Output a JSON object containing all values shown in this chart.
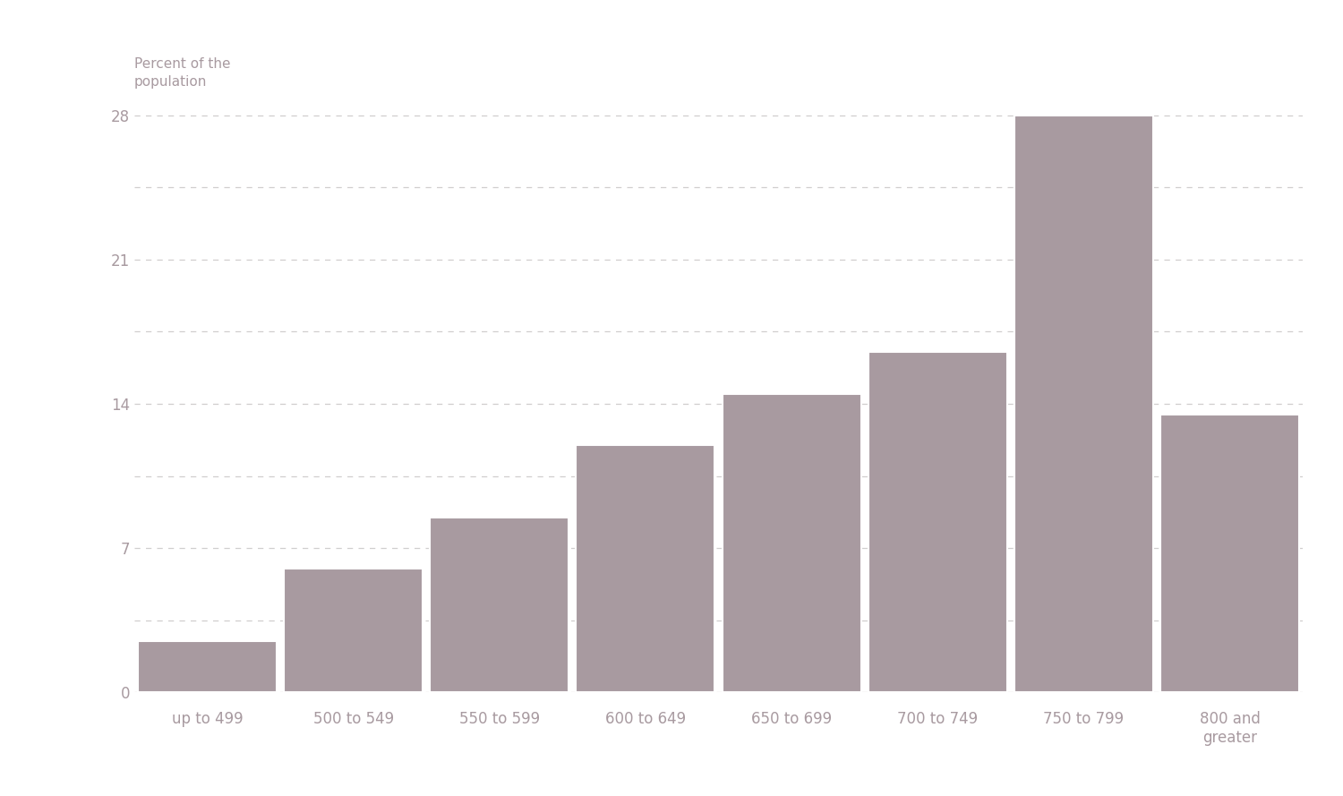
{
  "categories": [
    "up to 499",
    "500 to 549",
    "550 to 599",
    "600 to 649",
    "650 to 699",
    "700 to 749",
    "750 to 799",
    "800 and\ngreater"
  ],
  "values": [
    2.5,
    6.0,
    8.5,
    12.0,
    14.5,
    16.5,
    28.0,
    13.5
  ],
  "bar_color": "#a89aa0",
  "bar_edge_color": "#ffffff",
  "bar_edge_width": 1.5,
  "ylabel_line1": "Percent of the",
  "ylabel_line2": "population",
  "yticks": [
    0,
    7,
    14,
    21,
    28
  ],
  "extra_gridlines": [
    3.5,
    10.5,
    17.5,
    24.5
  ],
  "ylim": [
    0,
    30.5
  ],
  "background_color": "#ffffff",
  "grid_color": "#d0cece",
  "label_color": "#a89aa0",
  "ylabel_fontsize": 11,
  "tick_fontsize": 12
}
